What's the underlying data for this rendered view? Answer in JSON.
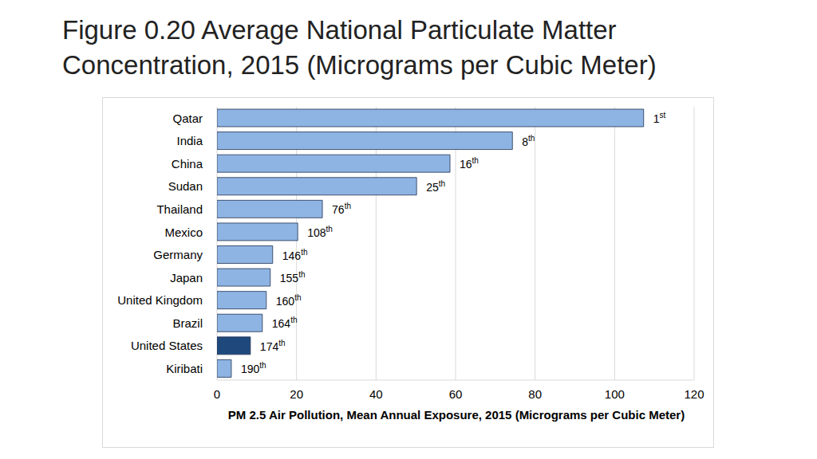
{
  "chart_data": {
    "type": "bar",
    "orientation": "horizontal",
    "title": "Figure 0.20 Average National Particulate Matter Concentration, 2015 (Micrograms per Cubic Meter)",
    "x_label": "PM 2.5 Air Pollution, Mean Annual Exposure, 2015 (Micrograms per Cubic Meter)",
    "categories": [
      "Qatar",
      "India",
      "China",
      "Sudan",
      "Thailand",
      "Mexico",
      "Germany",
      "Japan",
      "United Kingdom",
      "Brazil",
      "United States",
      "Kiribati"
    ],
    "values": [
      107.3,
      74.3,
      58.6,
      50.2,
      26.5,
      20.3,
      14.0,
      13.4,
      12.4,
      11.4,
      8.4,
      3.6
    ],
    "colors": [
      "#8eb4e3",
      "#8eb4e3",
      "#8eb4e3",
      "#8eb4e3",
      "#8eb4e3",
      "#8eb4e3",
      "#8eb4e3",
      "#8eb4e3",
      "#8eb4e3",
      "#8eb4e3",
      "#1f497d",
      "#8eb4e3"
    ],
    "rank_labels": [
      "1st",
      "8th",
      "16th",
      "25th",
      "76th",
      "108th",
      "146th",
      "155th",
      "160th",
      "164th",
      "174th",
      "190th"
    ],
    "xlim": [
      0,
      120
    ],
    "xticks": [
      0,
      20,
      40,
      60,
      80,
      100,
      120
    ],
    "grid": true
  }
}
